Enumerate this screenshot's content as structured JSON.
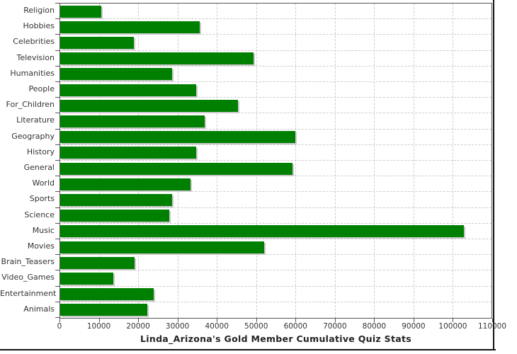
{
  "chart_data": {
    "type": "bar",
    "orientation": "horizontal",
    "title": "Linda_Arizona's Gold Member Cumulative Quiz Stats",
    "categories": [
      "Religion",
      "Hobbies",
      "Celebrities",
      "Television",
      "Humanities",
      "People",
      "For_Children",
      "Literature",
      "Geography",
      "History",
      "General",
      "World",
      "Sports",
      "Science",
      "Music",
      "Movies",
      "Brain_Teasers",
      "Video_Games",
      "Entertainment",
      "Animals"
    ],
    "values": [
      10500,
      35500,
      18800,
      49400,
      28600,
      34700,
      45400,
      36800,
      59900,
      34600,
      59200,
      33200,
      28500,
      27800,
      102900,
      52000,
      19000,
      13600,
      23800,
      22200
    ],
    "xlim": [
      0,
      110000
    ],
    "x_tick_labels": [
      "0",
      "10000",
      "20000",
      "30000",
      "40000",
      "50000",
      "60000",
      "70000",
      "80000",
      "90000",
      "100000",
      "110000"
    ],
    "grid": "dashed-both-directions",
    "legend": "none",
    "xlabel": "",
    "ylabel": "",
    "colors": {
      "bar": "#008000",
      "bar_shadow": "#c9c9c9",
      "gridline": "#cccccc",
      "axis": "#565656",
      "tick_label": "#333333",
      "title": "#222222",
      "background": "#ffffff",
      "window_border": "#111111"
    }
  }
}
